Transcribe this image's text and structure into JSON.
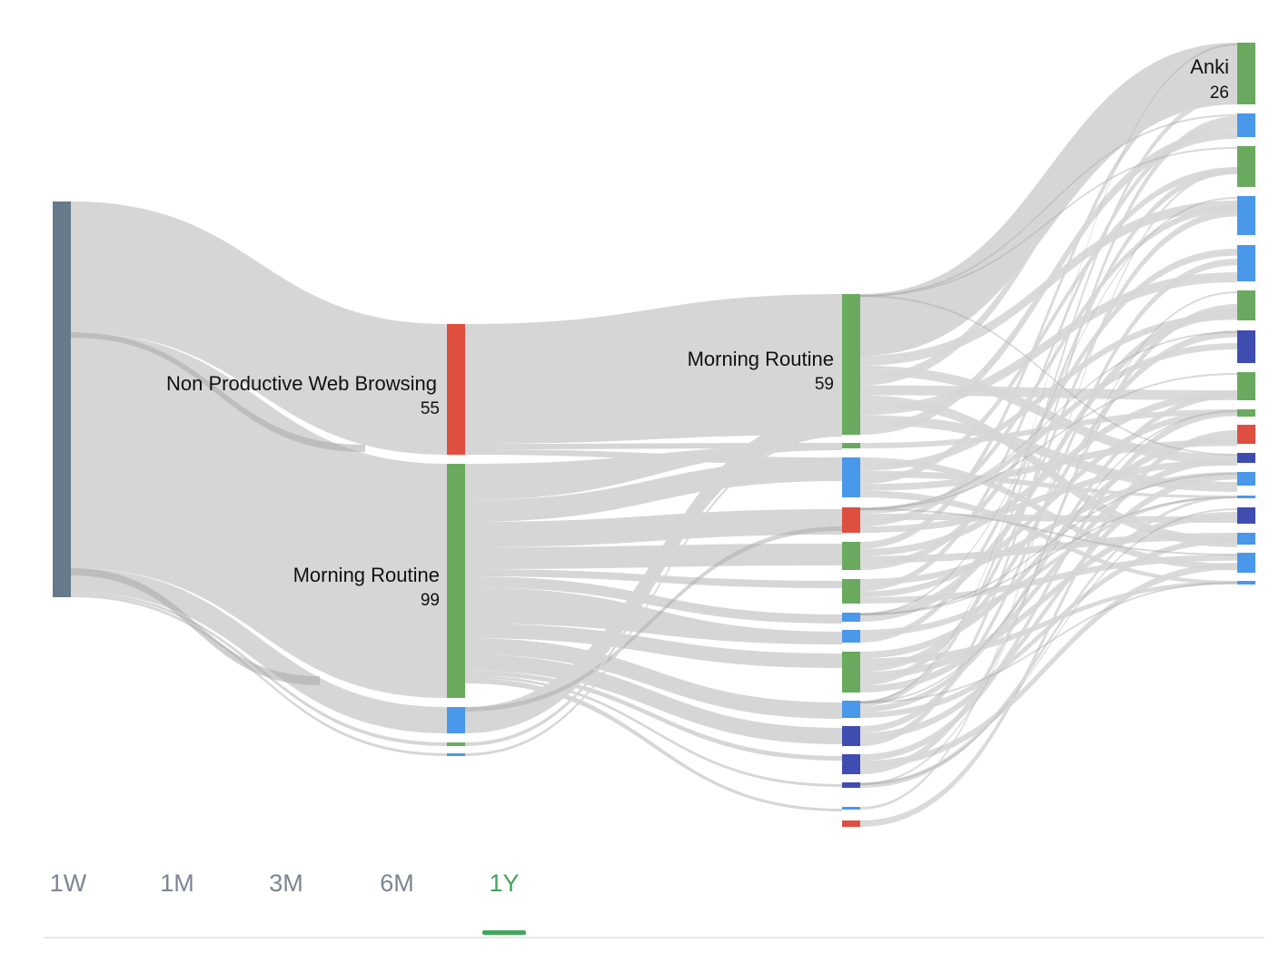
{
  "colors": {
    "link": "#d6d6d6",
    "link_highlight": "#a9a9a9",
    "root": "#667a8a",
    "green": "#6aaa5e",
    "blue": "#4a98ea",
    "red": "#de4f40",
    "indigo": "#3f4db0",
    "tab_active": "#43a55b",
    "tab_inactive": "#7b8592"
  },
  "chart_data": {
    "type": "sankey",
    "title": "",
    "labeled_nodes": [
      {
        "column": 1,
        "label": "Non Productive Web Browsing",
        "value": "55",
        "color": "red"
      },
      {
        "column": 1,
        "label": "Morning Routine",
        "value": "99",
        "color": "green"
      },
      {
        "column": 2,
        "label": "Morning Routine",
        "value": "59",
        "color": "green"
      },
      {
        "column": 3,
        "label": "Anki",
        "value": "26",
        "color": "green"
      }
    ],
    "unlabeled_node_colors": {
      "column_1": [
        "blue",
        "green",
        "blue"
      ],
      "column_2": [
        "green",
        "blue",
        "red",
        "green",
        "green",
        "blue",
        "blue",
        "green",
        "blue",
        "indigo",
        "indigo",
        "indigo",
        "blue",
        "red",
        "blue"
      ],
      "column_3": [
        "blue",
        "green",
        "blue",
        "blue",
        "green",
        "indigo",
        "green",
        "green",
        "red",
        "indigo",
        "blue",
        "blue",
        "indigo",
        "blue",
        "blue",
        "blue"
      ]
    }
  },
  "tabs": {
    "items": [
      {
        "label": "1W"
      },
      {
        "label": "1M"
      },
      {
        "label": "3M"
      },
      {
        "label": "6M"
      },
      {
        "label": "1Y"
      }
    ],
    "active": "1Y"
  }
}
